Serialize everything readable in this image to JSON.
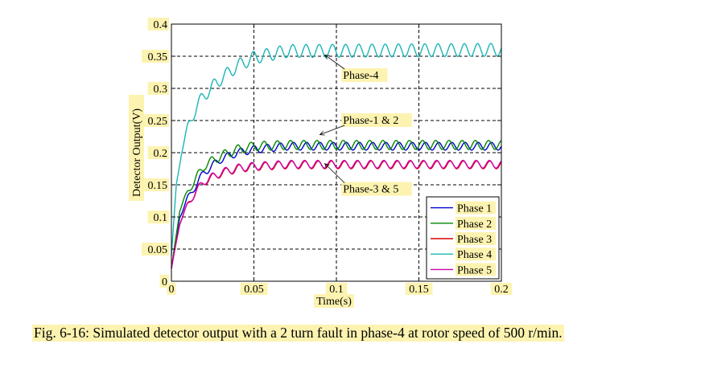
{
  "chart_data": {
    "type": "line",
    "xlabel": "Time(s)",
    "ylabel": "Detector Output(V)",
    "xlim": [
      0,
      0.2
    ],
    "ylim": [
      0,
      0.4
    ],
    "xticks": [
      "0",
      "0.05",
      "0.1",
      "0.15",
      "0.2"
    ],
    "yticks": [
      "0",
      "0.05",
      "0.1",
      "0.15",
      "0.2",
      "0.25",
      "0.3",
      "0.35",
      "0.4"
    ],
    "grid": true,
    "legend_position": "bottom-right",
    "series": [
      {
        "name": "Phase 1",
        "color": "#0000cc",
        "steady": 0.21,
        "ripple": 0.006,
        "period": 0.008,
        "phase": 0.0,
        "points": [
          [
            0,
            0.02
          ],
          [
            0.005,
            0.1
          ],
          [
            0.01,
            0.13
          ],
          [
            0.015,
            0.15
          ],
          [
            0.02,
            0.17
          ],
          [
            0.03,
            0.19
          ],
          [
            0.04,
            0.2
          ],
          [
            0.05,
            0.205
          ],
          [
            0.07,
            0.21
          ],
          [
            0.2,
            0.21
          ]
        ]
      },
      {
        "name": "Phase 2",
        "color": "#008800",
        "steady": 0.212,
        "ripple": 0.007,
        "period": 0.008,
        "phase": 1.4,
        "points": [
          [
            0,
            0.02
          ],
          [
            0.005,
            0.11
          ],
          [
            0.01,
            0.14
          ],
          [
            0.015,
            0.16
          ],
          [
            0.02,
            0.18
          ],
          [
            0.03,
            0.195
          ],
          [
            0.04,
            0.205
          ],
          [
            0.05,
            0.21
          ],
          [
            0.07,
            0.212
          ],
          [
            0.2,
            0.212
          ]
        ]
      },
      {
        "name": "Phase 3",
        "color": "#dd0000",
        "steady": 0.181,
        "ripple": 0.006,
        "period": 0.008,
        "phase": 0.8,
        "points": [
          [
            0,
            0.02
          ],
          [
            0.005,
            0.09
          ],
          [
            0.01,
            0.12
          ],
          [
            0.015,
            0.14
          ],
          [
            0.02,
            0.155
          ],
          [
            0.03,
            0.168
          ],
          [
            0.04,
            0.175
          ],
          [
            0.05,
            0.178
          ],
          [
            0.07,
            0.181
          ],
          [
            0.2,
            0.181
          ]
        ]
      },
      {
        "name": "Phase 4",
        "color": "#1bb5b5",
        "steady": 0.36,
        "ripple": 0.01,
        "period": 0.008,
        "phase": 0.3,
        "points": [
          [
            0,
            0.04
          ],
          [
            0.003,
            0.15
          ],
          [
            0.006,
            0.2
          ],
          [
            0.01,
            0.24
          ],
          [
            0.015,
            0.27
          ],
          [
            0.02,
            0.29
          ],
          [
            0.03,
            0.315
          ],
          [
            0.04,
            0.335
          ],
          [
            0.05,
            0.348
          ],
          [
            0.07,
            0.358
          ],
          [
            0.2,
            0.36
          ]
        ]
      },
      {
        "name": "Phase 5",
        "color": "#cc00aa",
        "steady": 0.182,
        "ripple": 0.006,
        "period": 0.008,
        "phase": 1.0,
        "points": [
          [
            0,
            0.02
          ],
          [
            0.005,
            0.09
          ],
          [
            0.01,
            0.12
          ],
          [
            0.015,
            0.14
          ],
          [
            0.02,
            0.156
          ],
          [
            0.03,
            0.169
          ],
          [
            0.04,
            0.176
          ],
          [
            0.05,
            0.179
          ],
          [
            0.07,
            0.182
          ],
          [
            0.2,
            0.182
          ]
        ]
      }
    ],
    "annotations": [
      {
        "text": "Phase-4",
        "x": 0.104,
        "y": 0.315,
        "arrow_to": [
          0.093,
          0.352
        ]
      },
      {
        "text": "Phase-1 & 2",
        "x": 0.104,
        "y": 0.245,
        "arrow_to": [
          0.09,
          0.228
        ]
      },
      {
        "text": "Phase-3 & 5",
        "x": 0.104,
        "y": 0.138,
        "arrow_to": [
          0.093,
          0.183
        ]
      }
    ]
  },
  "caption": "Fig. 6-16: Simulated detector output with a 2 turn fault in phase-4 at rotor speed of 500 r/min."
}
